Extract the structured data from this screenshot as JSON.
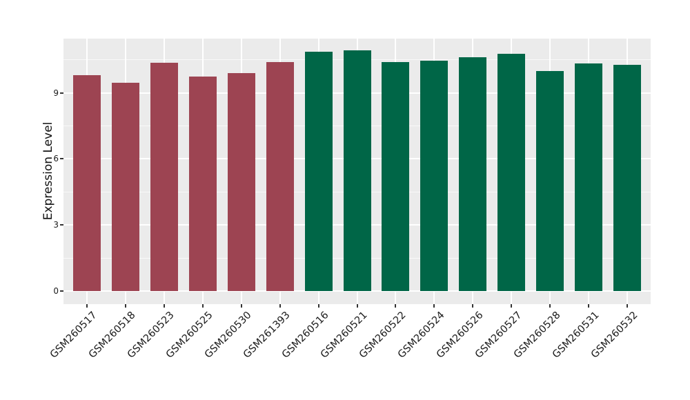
{
  "figure": {
    "background": "#FFFFFF",
    "panel_background": "#EBEBEB",
    "gridline_color": "#FFFFFF",
    "tick_color": "#333333",
    "text_color": "#1A1A1A"
  },
  "chart_data": {
    "type": "bar",
    "title": "",
    "xlabel": "",
    "ylabel": "Expression Level",
    "categories": [
      "GSM260517",
      "GSM260518",
      "GSM260523",
      "GSM260525",
      "GSM260530",
      "GSM261393",
      "GSM260516",
      "GSM260521",
      "GSM260522",
      "GSM260524",
      "GSM260526",
      "GSM260527",
      "GSM260528",
      "GSM260531",
      "GSM260532"
    ],
    "values": [
      9.81,
      9.46,
      10.35,
      9.75,
      9.88,
      10.39,
      10.87,
      10.93,
      10.39,
      10.45,
      10.6,
      10.76,
      9.98,
      10.34,
      10.27
    ],
    "groups": [
      "group1",
      "group1",
      "group1",
      "group1",
      "group1",
      "group1",
      "group2",
      "group2",
      "group2",
      "group2",
      "group2",
      "group2",
      "group2",
      "group2",
      "group2"
    ],
    "group_colors": {
      "group1": "#9D4452",
      "group2": "#006647"
    },
    "yticks": [
      0,
      3,
      6,
      9
    ],
    "ytick_labels": [
      "0",
      "3",
      "6",
      "9"
    ],
    "ylim": [
      0,
      11.5
    ],
    "grid": {
      "major": [
        0,
        3,
        6,
        9
      ],
      "minor": [
        1.5,
        4.5,
        7.5,
        10.5
      ]
    },
    "legend": "none",
    "x_tick_rotation": 45,
    "bar_baseline": 0
  }
}
